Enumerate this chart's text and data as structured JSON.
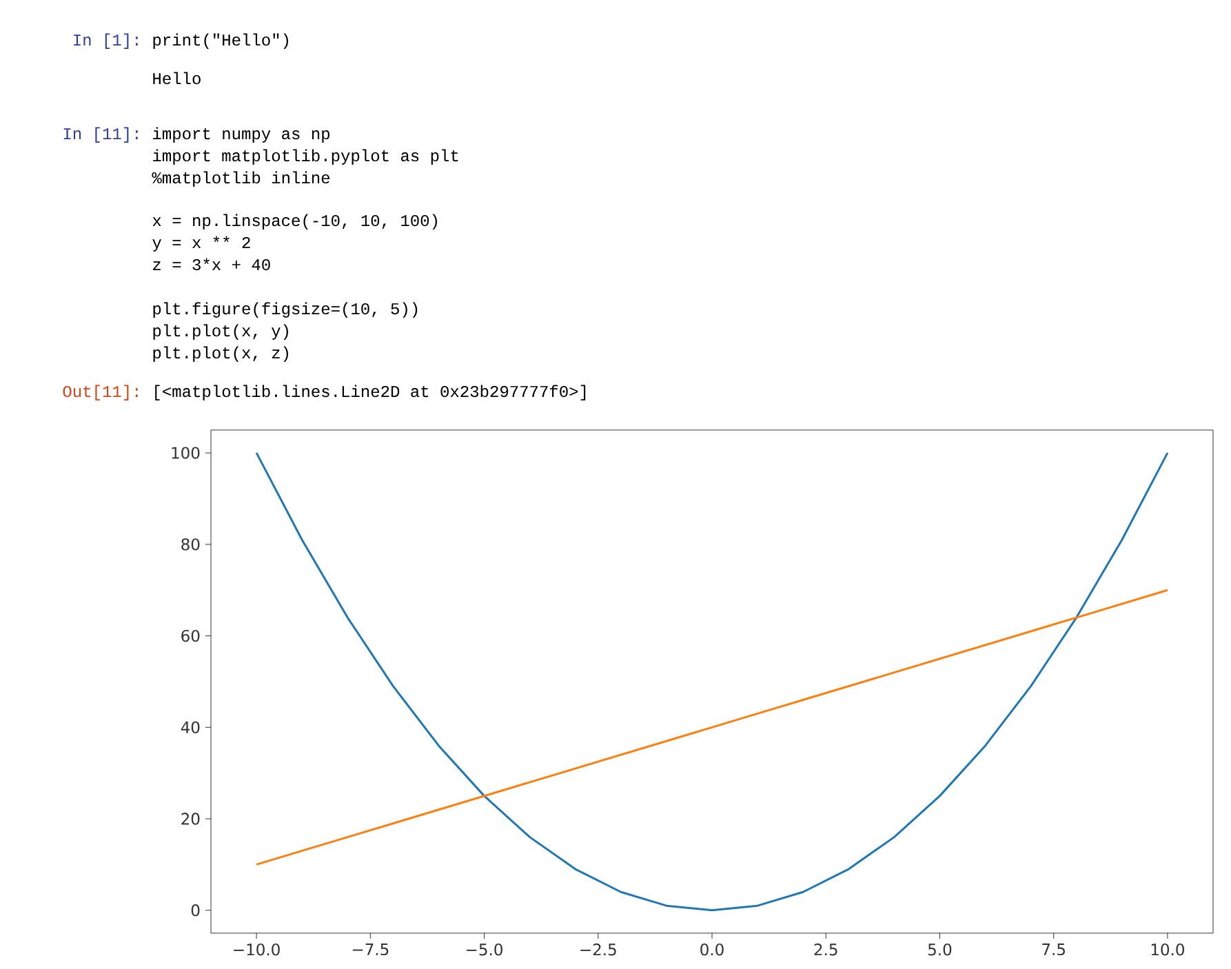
{
  "chart_data": {
    "type": "line",
    "x": [
      -10,
      -9,
      -8,
      -7,
      -6,
      -5,
      -4,
      -3,
      -2,
      -1,
      0,
      1,
      2,
      3,
      4,
      5,
      6,
      7,
      8,
      9,
      10
    ],
    "series": [
      {
        "color": "#1f77b4",
        "values": [
          100,
          81,
          64,
          49,
          36,
          25,
          16,
          9,
          4,
          1,
          0,
          1,
          4,
          9,
          16,
          25,
          36,
          49,
          64,
          81,
          100
        ]
      },
      {
        "color": "#ff7f0e",
        "values": [
          10,
          13,
          16,
          19,
          22,
          25,
          28,
          31,
          34,
          37,
          40,
          43,
          46,
          49,
          52,
          55,
          58,
          61,
          64,
          67,
          70
        ]
      }
    ],
    "xlim": [
      -11,
      11
    ],
    "ylim": [
      -5,
      105
    ],
    "xticks": [
      {
        "value": -10,
        "label": "−10.0"
      },
      {
        "value": -7.5,
        "label": "−7.5"
      },
      {
        "value": -5,
        "label": "−5.0"
      },
      {
        "value": -2.5,
        "label": "−2.5"
      },
      {
        "value": 0,
        "label": "0.0"
      },
      {
        "value": 2.5,
        "label": "2.5"
      },
      {
        "value": 5,
        "label": "5.0"
      },
      {
        "value": 7.5,
        "label": "7.5"
      },
      {
        "value": 10,
        "label": "10.0"
      }
    ],
    "yticks": [
      0,
      20,
      40,
      60,
      80,
      100
    ],
    "annotations": [
      "In [1]:",
      "print(\"Hello\")",
      "Hello",
      "In [11]:",
      "import numpy as np",
      "import matplotlib.pyplot as plt",
      "%matplotlib inline",
      "x = np.linspace(-10, 10, 100)",
      "y = x ** 2",
      "z = 3*x + 40",
      "plt.figure(figsize=(10, 5))",
      "plt.plot(x, y)",
      "plt.plot(x, z)",
      "Out[11]:",
      "[<matplotlib.lines.Line2D at 0x23b297777f0>]"
    ]
  }
}
